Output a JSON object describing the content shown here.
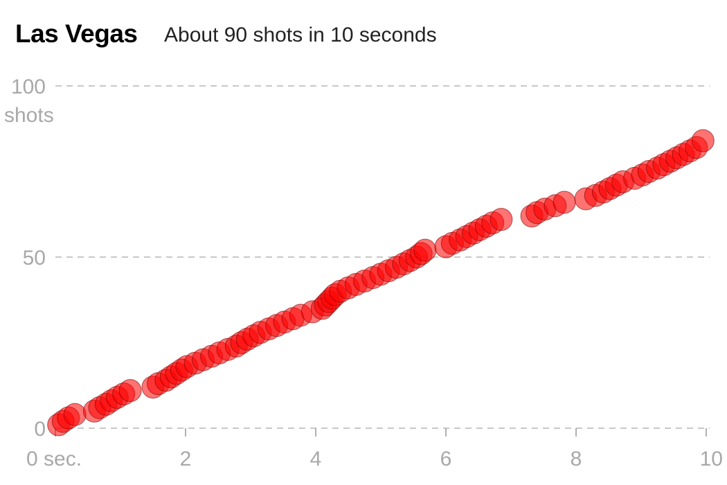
{
  "chart_data": {
    "type": "scatter",
    "title": "Las Vegas",
    "subtitle": "About 90 shots in 10 seconds",
    "xlim": [
      0,
      10
    ],
    "ylim": [
      0,
      100
    ],
    "x_ticks": [
      {
        "value": 0,
        "label": "0 sec."
      },
      {
        "value": 2,
        "label": "2"
      },
      {
        "value": 4,
        "label": "4"
      },
      {
        "value": 6,
        "label": "6"
      },
      {
        "value": 8,
        "label": "8"
      },
      {
        "value": 10,
        "label": "10"
      }
    ],
    "y_ticks": [
      {
        "value": 0,
        "label": "0"
      },
      {
        "value": 50,
        "label": "50"
      },
      {
        "value": 100,
        "label": "100"
      }
    ],
    "y_unit_label": "shots",
    "grid": "horizontal dashed",
    "marker_color": "#ff0000",
    "series": [
      {
        "points": [
          [
            0.05,
            1
          ],
          [
            0.12,
            2
          ],
          [
            0.2,
            3
          ],
          [
            0.3,
            4
          ],
          [
            0.6,
            5
          ],
          [
            0.68,
            6
          ],
          [
            0.78,
            7
          ],
          [
            0.86,
            8
          ],
          [
            0.95,
            9
          ],
          [
            1.05,
            10
          ],
          [
            1.15,
            11
          ],
          [
            1.5,
            12
          ],
          [
            1.58,
            13
          ],
          [
            1.7,
            14
          ],
          [
            1.78,
            15
          ],
          [
            1.86,
            16
          ],
          [
            1.94,
            17
          ],
          [
            2.02,
            18
          ],
          [
            2.15,
            19
          ],
          [
            2.27,
            20
          ],
          [
            2.4,
            21
          ],
          [
            2.52,
            22
          ],
          [
            2.65,
            23
          ],
          [
            2.78,
            24
          ],
          [
            2.86,
            25
          ],
          [
            2.95,
            26
          ],
          [
            3.05,
            27
          ],
          [
            3.15,
            28
          ],
          [
            3.28,
            29
          ],
          [
            3.4,
            30
          ],
          [
            3.52,
            31
          ],
          [
            3.65,
            32
          ],
          [
            3.77,
            33
          ],
          [
            3.95,
            34
          ],
          [
            4.1,
            35
          ],
          [
            4.15,
            36
          ],
          [
            4.2,
            37
          ],
          [
            4.25,
            38
          ],
          [
            4.3,
            39
          ],
          [
            4.38,
            40
          ],
          [
            4.5,
            41
          ],
          [
            4.62,
            42
          ],
          [
            4.75,
            43
          ],
          [
            4.88,
            44
          ],
          [
            5.0,
            45
          ],
          [
            5.12,
            46
          ],
          [
            5.24,
            47
          ],
          [
            5.35,
            48
          ],
          [
            5.45,
            49
          ],
          [
            5.55,
            50
          ],
          [
            5.62,
            51
          ],
          [
            5.68,
            52
          ],
          [
            6.0,
            53
          ],
          [
            6.1,
            54
          ],
          [
            6.22,
            55
          ],
          [
            6.32,
            56
          ],
          [
            6.42,
            57
          ],
          [
            6.52,
            58
          ],
          [
            6.62,
            59
          ],
          [
            6.72,
            60
          ],
          [
            6.85,
            61
          ],
          [
            7.32,
            62
          ],
          [
            7.4,
            63
          ],
          [
            7.52,
            64
          ],
          [
            7.68,
            65
          ],
          [
            7.82,
            66
          ],
          [
            8.15,
            67
          ],
          [
            8.3,
            68
          ],
          [
            8.42,
            69
          ],
          [
            8.52,
            70
          ],
          [
            8.62,
            71
          ],
          [
            8.72,
            72
          ],
          [
            8.9,
            73
          ],
          [
            9.02,
            74
          ],
          [
            9.12,
            75
          ],
          [
            9.25,
            76
          ],
          [
            9.35,
            77
          ],
          [
            9.45,
            78
          ],
          [
            9.55,
            79
          ],
          [
            9.65,
            80
          ],
          [
            9.75,
            81
          ],
          [
            9.85,
            82
          ],
          [
            9.95,
            84
          ]
        ]
      }
    ]
  }
}
